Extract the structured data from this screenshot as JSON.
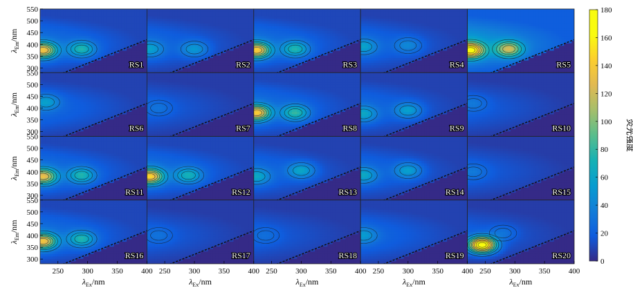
{
  "chart_data": {
    "type": "heatmap",
    "subtype": "excitation-emission matrix contour grid",
    "rows": 4,
    "cols": 5,
    "x_axis": {
      "label_main": "λ",
      "label_sub": "Ex",
      "label_unit": "/nm",
      "range": [
        220,
        400
      ],
      "ticks": [
        250,
        300,
        350,
        400
      ]
    },
    "y_axis": {
      "label_main": "λ",
      "label_sub": "Em",
      "label_unit": "/nm",
      "range": [
        280,
        550
      ],
      "ticks": [
        300,
        350,
        400,
        450,
        500,
        550
      ]
    },
    "colorbar": {
      "label": "荧光强度",
      "range": [
        0,
        180
      ],
      "ticks": [
        0,
        20,
        40,
        60,
        80,
        100,
        120,
        140,
        160,
        180
      ]
    },
    "panels": [
      {
        "label": "RS1",
        "bg": 30,
        "peaks": [
          {
            "ex": 225,
            "em": 375,
            "amp": 110
          },
          {
            "ex": 290,
            "em": 380,
            "amp": 55
          }
        ]
      },
      {
        "label": "RS2",
        "bg": 25,
        "peaks": [
          {
            "ex": 225,
            "em": 380,
            "amp": 35
          },
          {
            "ex": 300,
            "em": 380,
            "amp": 35
          }
        ]
      },
      {
        "label": "RS3",
        "bg": 30,
        "peaks": [
          {
            "ex": 225,
            "em": 375,
            "amp": 115
          },
          {
            "ex": 290,
            "em": 380,
            "amp": 55
          }
        ]
      },
      {
        "label": "RS4",
        "bg": 25,
        "peaks": [
          {
            "ex": 225,
            "em": 390,
            "amp": 35
          },
          {
            "ex": 300,
            "em": 395,
            "amp": 25
          }
        ]
      },
      {
        "label": "RS5",
        "bg": 55,
        "peaks": [
          {
            "ex": 225,
            "em": 375,
            "amp": 130
          },
          {
            "ex": 290,
            "em": 380,
            "amp": 85
          }
        ]
      },
      {
        "label": "RS6",
        "bg": 25,
        "peaks": [
          {
            "ex": 230,
            "em": 425,
            "amp": 35
          }
        ]
      },
      {
        "label": "RS7",
        "bg": 20,
        "peaks": [
          {
            "ex": 240,
            "em": 400,
            "amp": 12
          }
        ]
      },
      {
        "label": "RS8",
        "bg": 30,
        "peaks": [
          {
            "ex": 225,
            "em": 380,
            "amp": 115
          },
          {
            "ex": 290,
            "em": 380,
            "amp": 60
          }
        ]
      },
      {
        "label": "RS9",
        "bg": 25,
        "peaks": [
          {
            "ex": 225,
            "em": 375,
            "amp": 40
          },
          {
            "ex": 300,
            "em": 390,
            "amp": 40
          }
        ]
      },
      {
        "label": "RS10",
        "bg": 20,
        "peaks": [
          {
            "ex": 230,
            "em": 420,
            "amp": 15
          }
        ]
      },
      {
        "label": "RS11",
        "bg": 30,
        "peaks": [
          {
            "ex": 225,
            "em": 380,
            "amp": 105
          },
          {
            "ex": 290,
            "em": 385,
            "amp": 55
          }
        ]
      },
      {
        "label": "RS12",
        "bg": 30,
        "peaks": [
          {
            "ex": 225,
            "em": 380,
            "amp": 120
          },
          {
            "ex": 290,
            "em": 385,
            "amp": 50
          }
        ]
      },
      {
        "label": "RS13",
        "bg": 25,
        "peaks": [
          {
            "ex": 225,
            "em": 380,
            "amp": 40
          },
          {
            "ex": 300,
            "em": 405,
            "amp": 45
          }
        ]
      },
      {
        "label": "RS14",
        "bg": 25,
        "peaks": [
          {
            "ex": 225,
            "em": 385,
            "amp": 40
          },
          {
            "ex": 300,
            "em": 405,
            "amp": 40
          }
        ]
      },
      {
        "label": "RS15",
        "bg": 20,
        "peaks": [
          {
            "ex": 230,
            "em": 400,
            "amp": 15
          }
        ]
      },
      {
        "label": "RS16",
        "bg": 30,
        "peaks": [
          {
            "ex": 225,
            "em": 375,
            "amp": 110
          },
          {
            "ex": 290,
            "em": 385,
            "amp": 55
          }
        ]
      },
      {
        "label": "RS17",
        "bg": 20,
        "peaks": [
          {
            "ex": 240,
            "em": 400,
            "amp": 12
          }
        ]
      },
      {
        "label": "RS18",
        "bg": 20,
        "peaks": [
          {
            "ex": 240,
            "em": 400,
            "amp": 10
          }
        ]
      },
      {
        "label": "RS19",
        "bg": 25,
        "peaks": [
          {
            "ex": 225,
            "em": 400,
            "amp": 30
          }
        ]
      },
      {
        "label": "RS20",
        "bg": 20,
        "peaks": [
          {
            "ex": 245,
            "em": 360,
            "amp": 175
          },
          {
            "ex": 280,
            "em": 410,
            "amp": 15
          }
        ]
      }
    ]
  }
}
